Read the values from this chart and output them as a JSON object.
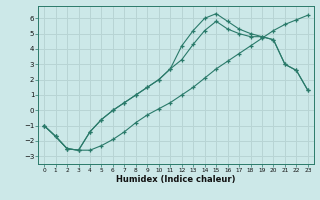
{
  "xlabel": "Humidex (Indice chaleur)",
  "background_color": "#cce8e8",
  "grid_color": "#b8d4d4",
  "line_color": "#2a7a6a",
  "xlim": [
    -0.5,
    23.5
  ],
  "ylim": [
    -3.5,
    6.8
  ],
  "xticks": [
    0,
    1,
    2,
    3,
    4,
    5,
    6,
    7,
    8,
    9,
    10,
    11,
    12,
    13,
    14,
    15,
    16,
    17,
    18,
    19,
    20,
    21,
    22,
    23
  ],
  "yticks": [
    -3,
    -2,
    -1,
    0,
    1,
    2,
    3,
    4,
    5,
    6
  ],
  "line1_x": [
    0,
    1,
    2,
    3,
    4,
    5,
    6,
    7,
    8,
    9,
    10,
    11,
    12,
    13,
    14,
    15,
    16,
    17,
    18,
    19,
    20,
    21,
    22,
    23
  ],
  "line1_y": [
    -1.0,
    -1.7,
    -2.5,
    -2.6,
    -2.6,
    -2.3,
    -1.9,
    -1.4,
    -0.8,
    -0.3,
    0.1,
    0.5,
    1.0,
    1.5,
    2.1,
    2.7,
    3.2,
    3.7,
    4.2,
    4.7,
    5.2,
    5.6,
    5.9,
    6.2
  ],
  "line2_x": [
    0,
    1,
    2,
    3,
    4,
    5,
    6,
    7,
    8,
    9,
    10,
    11,
    12,
    13,
    14,
    15,
    16,
    17,
    18,
    19,
    20,
    21,
    22,
    23
  ],
  "line2_y": [
    -1.0,
    -1.7,
    -2.5,
    -2.6,
    -1.4,
    -0.6,
    0.0,
    0.5,
    1.0,
    1.5,
    2.0,
    2.7,
    3.3,
    4.3,
    5.2,
    5.8,
    5.3,
    5.0,
    4.8,
    4.8,
    4.6,
    3.0,
    2.6,
    1.3
  ],
  "line3_x": [
    0,
    1,
    2,
    3,
    4,
    5,
    6,
    7,
    8,
    9,
    10,
    11,
    12,
    13,
    14,
    15,
    16,
    17,
    18,
    19,
    20,
    21,
    22,
    23
  ],
  "line3_y": [
    -1.0,
    -1.7,
    -2.5,
    -2.6,
    -1.4,
    -0.6,
    0.0,
    0.5,
    1.0,
    1.5,
    2.0,
    2.7,
    4.2,
    5.2,
    6.0,
    6.3,
    5.8,
    5.3,
    5.0,
    4.8,
    4.6,
    3.0,
    2.6,
    1.3
  ]
}
